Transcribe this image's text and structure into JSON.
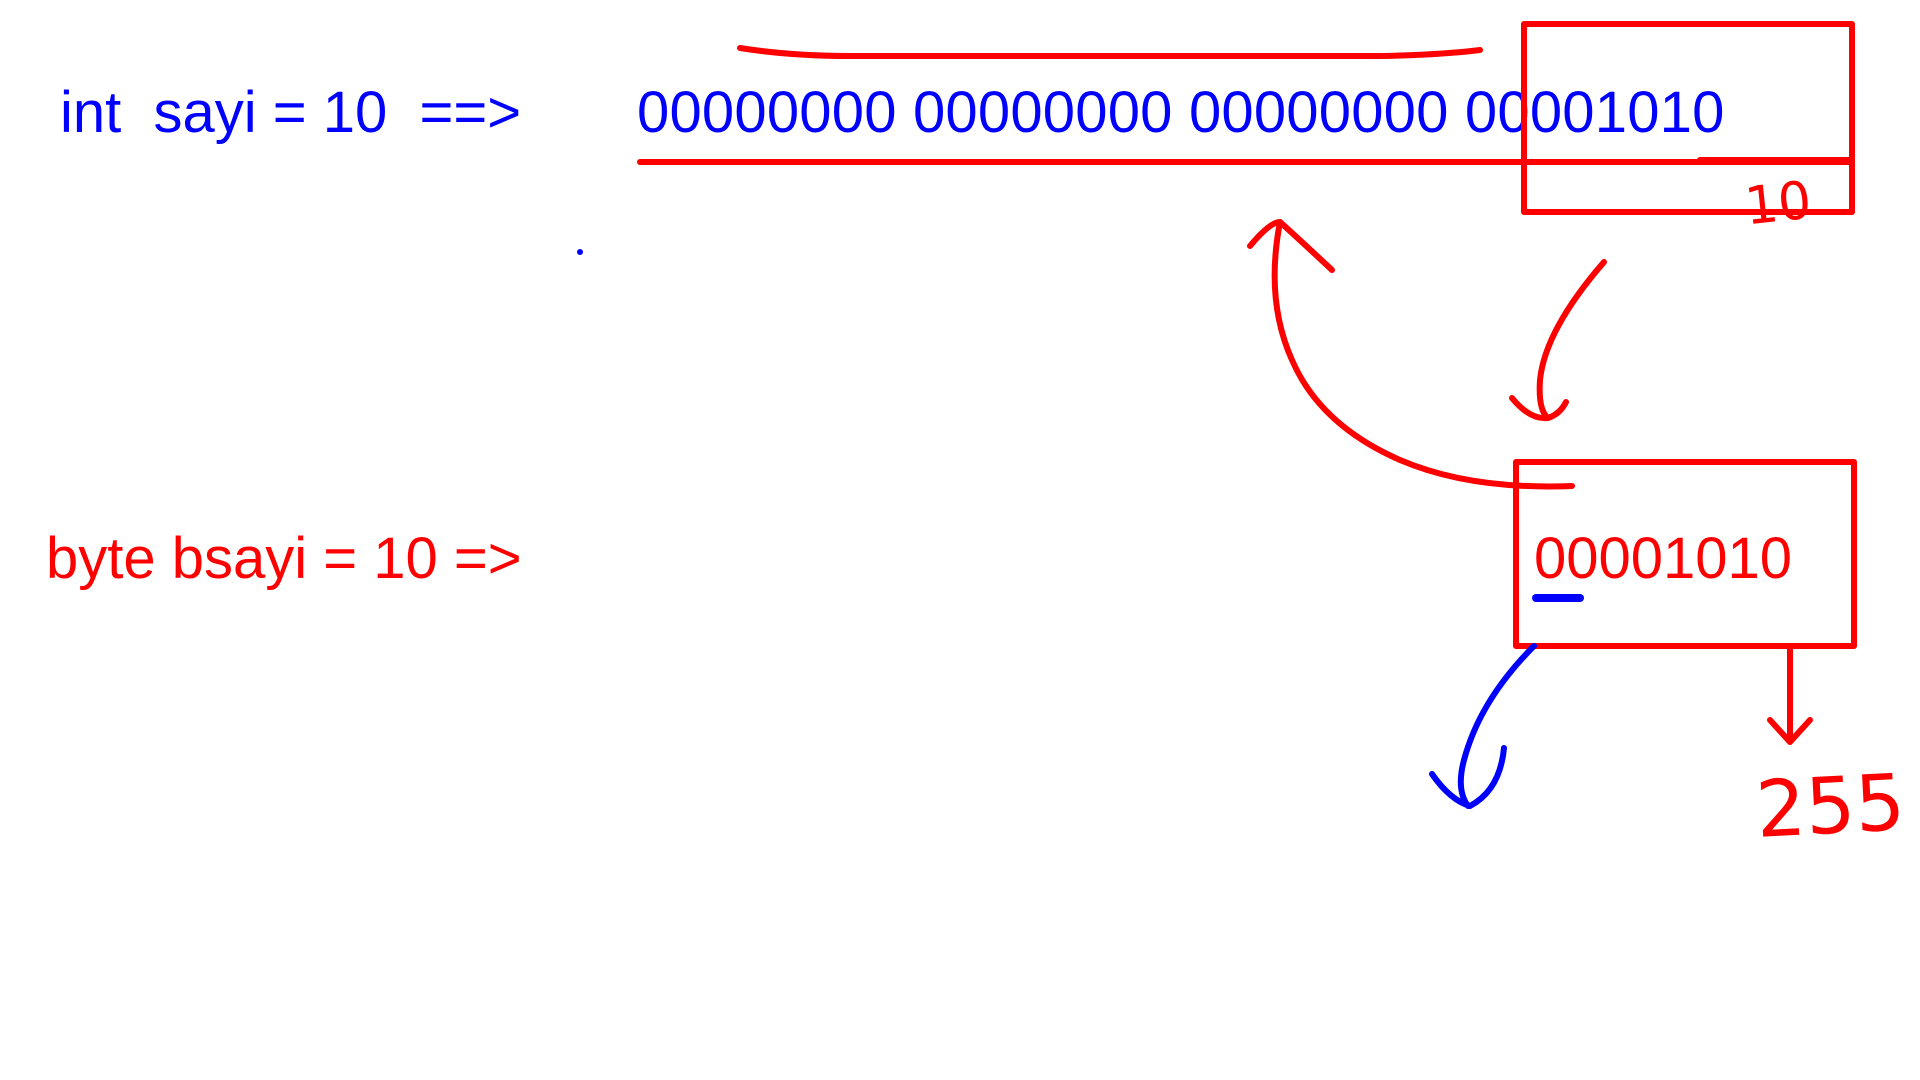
{
  "diagram": {
    "int_declaration": "int  sayi = 10  ==>",
    "int_binary": "00000000 00000000 00000000 00001010",
    "byte_declaration": "byte bsayi = 10 =>",
    "byte_binary": "00001010",
    "handwritten_low_byte_value": "10",
    "handwritten_max_value": "255"
  },
  "colors": {
    "int_text": "#0000ff",
    "byte_text": "#ff0000",
    "annotation_ink": "#ff0000",
    "sign_bit_ink": "#0000ff"
  }
}
